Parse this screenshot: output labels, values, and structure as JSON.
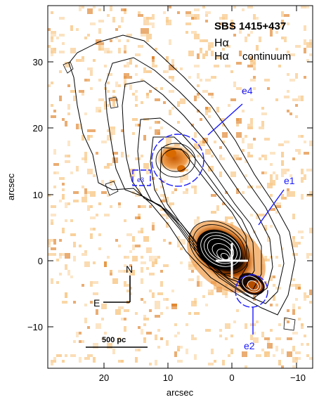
{
  "figure": {
    "title": "SBS 1415+437",
    "legend_line1": "Hα",
    "legend_line2_a": "Hα",
    "legend_line2_b": "continuum",
    "x_axis_label": "arcsec",
    "y_axis_label": "arcsec",
    "x_ticks": [
      "20",
      "10",
      "0",
      "−10"
    ],
    "y_ticks": [
      "30",
      "20",
      "10",
      "0",
      "−10"
    ],
    "compass_north": "N",
    "compass_east": "E",
    "scale_bar_label": "500 pc",
    "regions": [
      {
        "label": "e1"
      },
      {
        "label": "e2"
      },
      {
        "label": "e3"
      },
      {
        "label": "e4"
      }
    ],
    "colors": {
      "annotation": "#1a1aff",
      "emission_low": "#f8c98a",
      "emission_high": "#d86a00",
      "contour_inner": "#ffffff",
      "contour_outer": "#000000"
    }
  }
}
